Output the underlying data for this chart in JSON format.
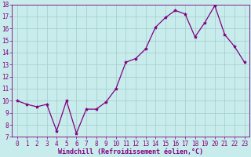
{
  "x": [
    0,
    1,
    2,
    3,
    4,
    5,
    6,
    7,
    8,
    9,
    10,
    11,
    12,
    13,
    14,
    15,
    16,
    17,
    18,
    19,
    20,
    21,
    22,
    23
  ],
  "y": [
    10.0,
    9.7,
    9.5,
    9.7,
    7.5,
    10.0,
    7.3,
    9.3,
    9.3,
    9.9,
    11.0,
    13.2,
    13.5,
    14.3,
    16.1,
    16.9,
    17.5,
    17.2,
    15.3,
    16.5,
    17.9,
    15.5,
    14.5,
    13.2
  ],
  "line_color": "#800080",
  "marker": "*",
  "marker_size": 3,
  "bg_color": "#c8ecec",
  "grid_color": "#a8d0d0",
  "xlabel": "Windchill (Refroidissement éolien,°C)",
  "ylim": [
    7,
    18
  ],
  "xlim_min": -0.5,
  "xlim_max": 23.5,
  "yticks": [
    7,
    8,
    9,
    10,
    11,
    12,
    13,
    14,
    15,
    16,
    17,
    18
  ],
  "xticks": [
    0,
    1,
    2,
    3,
    4,
    5,
    6,
    7,
    8,
    9,
    10,
    11,
    12,
    13,
    14,
    15,
    16,
    17,
    18,
    19,
    20,
    21,
    22,
    23
  ],
  "axis_color": "#800080",
  "tick_color": "#800080",
  "label_color": "#800080",
  "xlabel_fontsize": 6.0,
  "tick_fontsize": 5.5,
  "line_width": 0.9
}
